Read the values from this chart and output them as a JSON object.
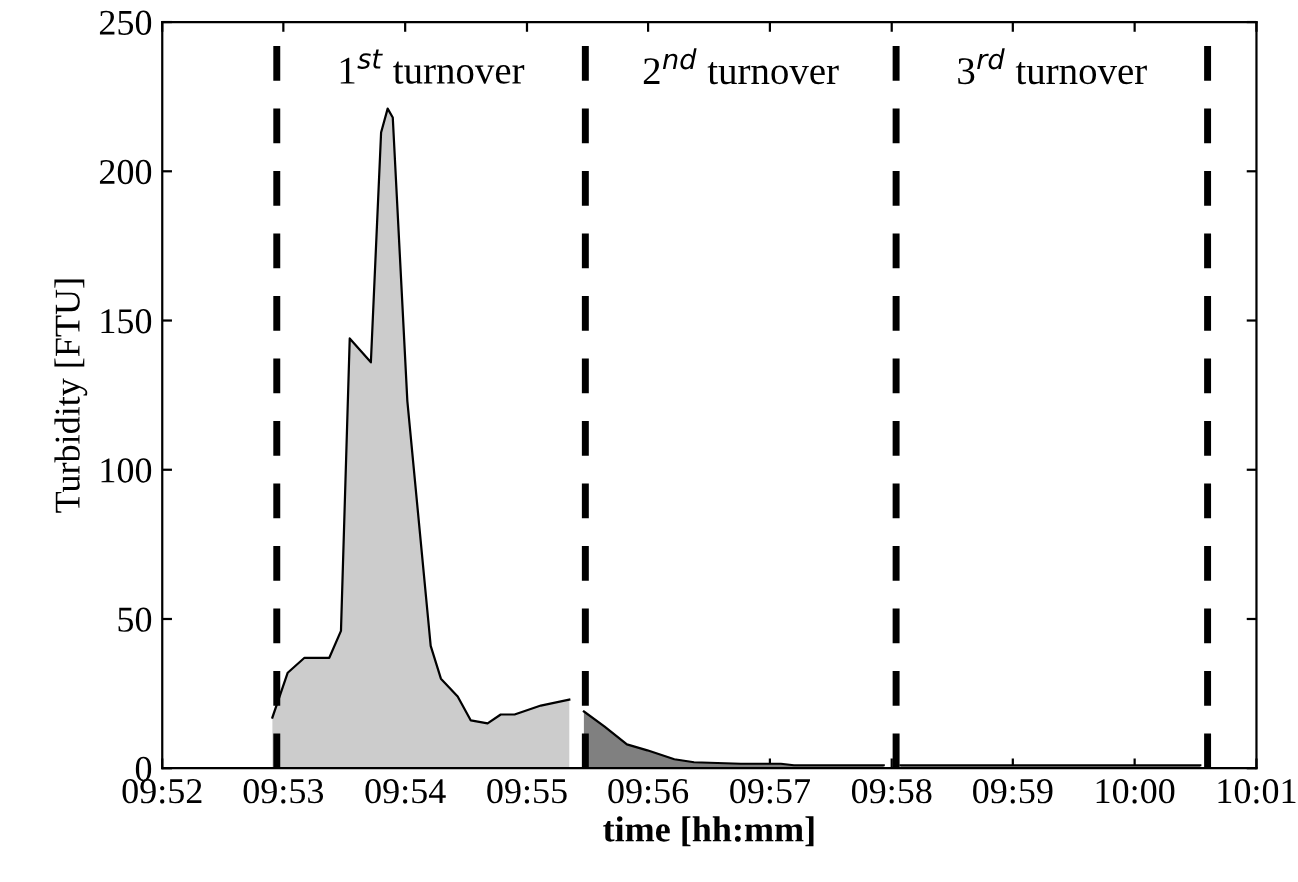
{
  "chart_data": {
    "type": "area",
    "xlabel": "time [hh:mm]",
    "ylabel": "Turbidity [FTU]",
    "series": [
      {
        "color": "#cccccc",
        "x": [
          9.8818,
          9.8839,
          9.8862,
          9.888,
          9.8896,
          9.8912,
          9.8924,
          9.8953,
          9.8967,
          9.8976,
          9.8983,
          9.9003,
          9.9035,
          9.9049,
          9.9072,
          9.909,
          9.9113,
          9.9131,
          9.915,
          9.9186,
          9.9225
        ],
        "values": [
          17,
          32,
          37,
          37,
          37,
          46,
          144,
          136,
          213,
          221,
          218,
          123,
          41,
          30,
          24,
          16,
          15,
          18,
          18,
          21,
          23
        ]
      },
      {
        "color": "#808080",
        "x": [
          9.9245,
          9.9273,
          9.9304,
          9.9332,
          9.9369,
          9.9396,
          9.946,
          9.9515,
          9.9533,
          9.9592,
          9.9656
        ],
        "values": [
          19,
          14,
          8,
          6,
          3,
          2,
          1.5,
          1.5,
          1,
          1,
          1
        ]
      },
      {
        "color": "#808080",
        "x": [
          9.9679,
          9.9752,
          9.9825,
          9.9917,
          10.0008,
          10.009
        ],
        "values": [
          1,
          1,
          1,
          1,
          1,
          1
        ]
      }
    ],
    "xlim": [
      9.8667,
      10.0167
    ],
    "xticks": [
      {
        "value": 9.8667,
        "label": "09:52"
      },
      {
        "value": 9.8833,
        "label": "09:53"
      },
      {
        "value": 9.9,
        "label": "09:54"
      },
      {
        "value": 9.9167,
        "label": "09:55"
      },
      {
        "value": 9.9333,
        "label": "09:56"
      },
      {
        "value": 9.95,
        "label": "09:57"
      },
      {
        "value": 9.9667,
        "label": "09:58"
      },
      {
        "value": 9.9833,
        "label": "09:59"
      },
      {
        "value": 10,
        "label": "10:00"
      },
      {
        "value": 10.0167,
        "label": "10:01"
      }
    ],
    "ylim": [
      0,
      250
    ],
    "yticks": [
      0,
      50,
      100,
      150,
      200,
      250
    ],
    "ref_lines": [
      {
        "axis": "x",
        "value": 9.8824,
        "line_style": "dashed",
        "color": "#000000"
      },
      {
        "axis": "x",
        "value": 9.9247,
        "line_style": "dashed",
        "color": "#000000"
      },
      {
        "axis": "x",
        "value": 9.9673,
        "line_style": "dashed",
        "color": "#000000"
      },
      {
        "axis": "x",
        "value": 10.01,
        "line_style": "dashed",
        "color": "#000000"
      }
    ],
    "annotations": [
      "1$^{st}$ turnover",
      "2$^{nd}$ turnover",
      "3$^{rd}$ turnover"
    ],
    "grid": false,
    "legend": false
  }
}
